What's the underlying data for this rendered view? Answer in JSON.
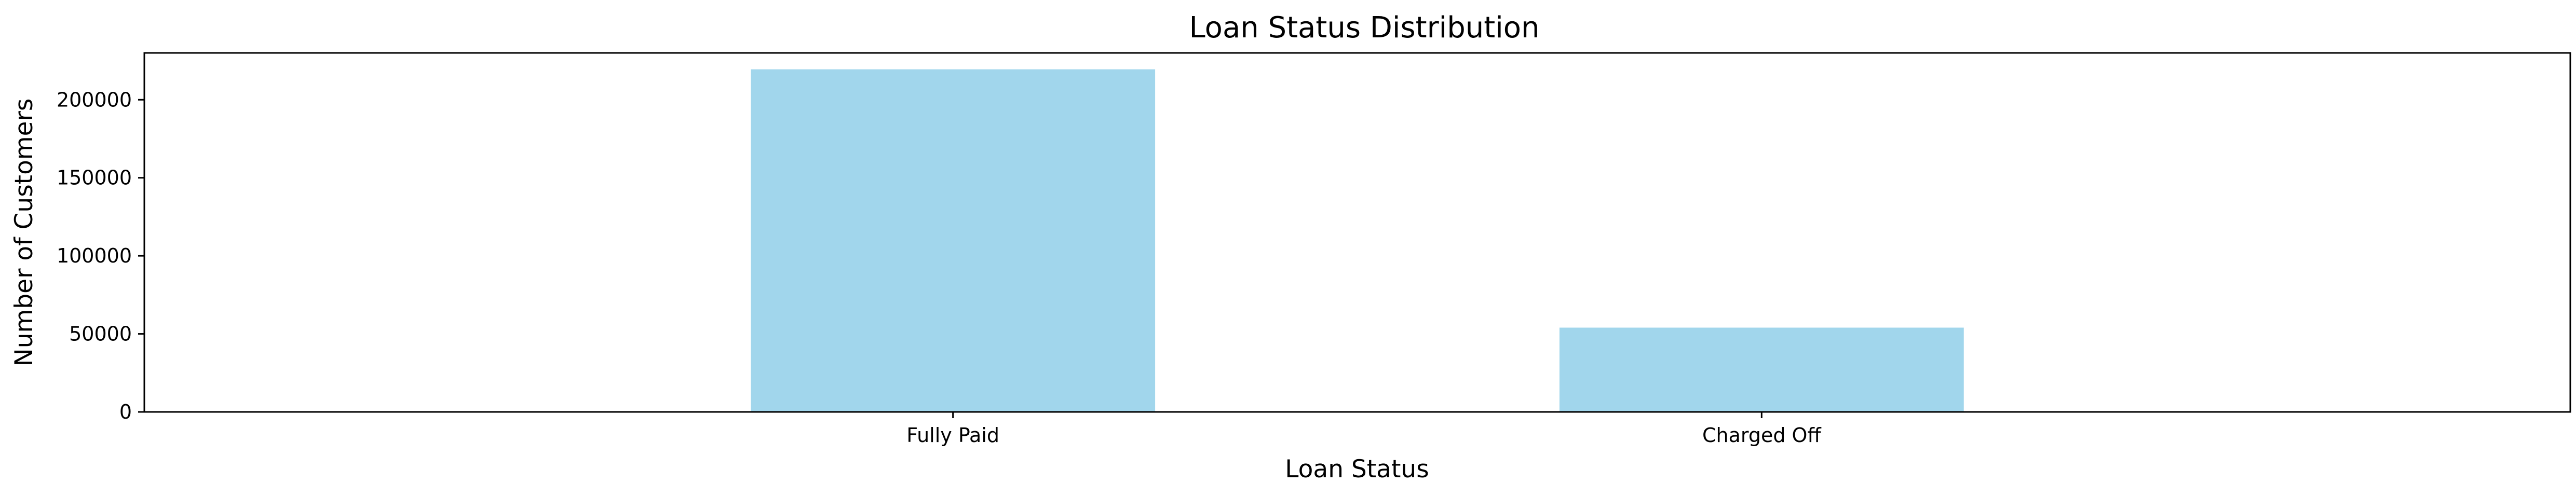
{
  "chart_data": {
    "type": "bar",
    "title": "Loan Status Distribution",
    "xlabel": "Loan Status",
    "ylabel": "Number of Customers",
    "categories": [
      "Fully Paid",
      "Charged Off"
    ],
    "values": [
      219500,
      54000
    ],
    "ylim": [
      0,
      230000
    ],
    "yticks": [
      0,
      50000,
      100000,
      150000,
      200000
    ],
    "ytick_labels": [
      "0",
      "50000",
      "100000",
      "150000",
      "200000"
    ],
    "bar_color": "#a1d6ec",
    "grid": false,
    "legend": "none"
  }
}
